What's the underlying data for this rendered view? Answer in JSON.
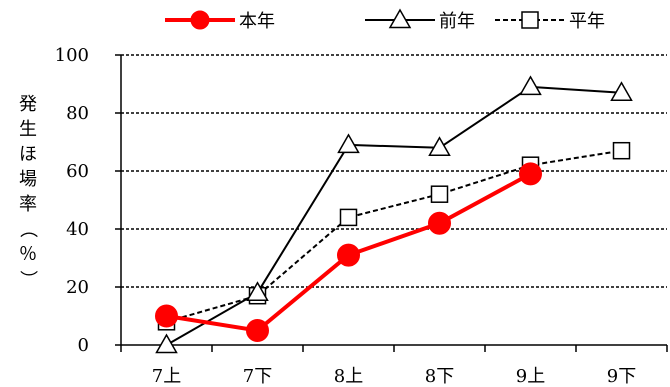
{
  "chart_data": {
    "type": "line",
    "categories": [
      "7上",
      "7下",
      "8上",
      "8下",
      "9上",
      "9下"
    ],
    "ylabel": "発生ほ場率（％）",
    "ylim": [
      0,
      100
    ],
    "yticks": [
      0,
      20,
      40,
      60,
      80,
      100
    ],
    "grid": "horizontal dashed",
    "legend_position": "top",
    "series": [
      {
        "name": "本年",
        "values": [
          10,
          5,
          31,
          42,
          59,
          null
        ],
        "color": "#ff0000",
        "marker": "circle",
        "line": "solid"
      },
      {
        "name": "前年",
        "values": [
          0,
          18,
          69,
          68,
          89,
          87
        ],
        "color": "#000000",
        "marker": "triangle",
        "line": "solid"
      },
      {
        "name": "平年",
        "values": [
          8,
          17,
          44,
          52,
          62,
          67
        ],
        "color": "#000000",
        "marker": "square",
        "line": "dashed"
      }
    ]
  }
}
